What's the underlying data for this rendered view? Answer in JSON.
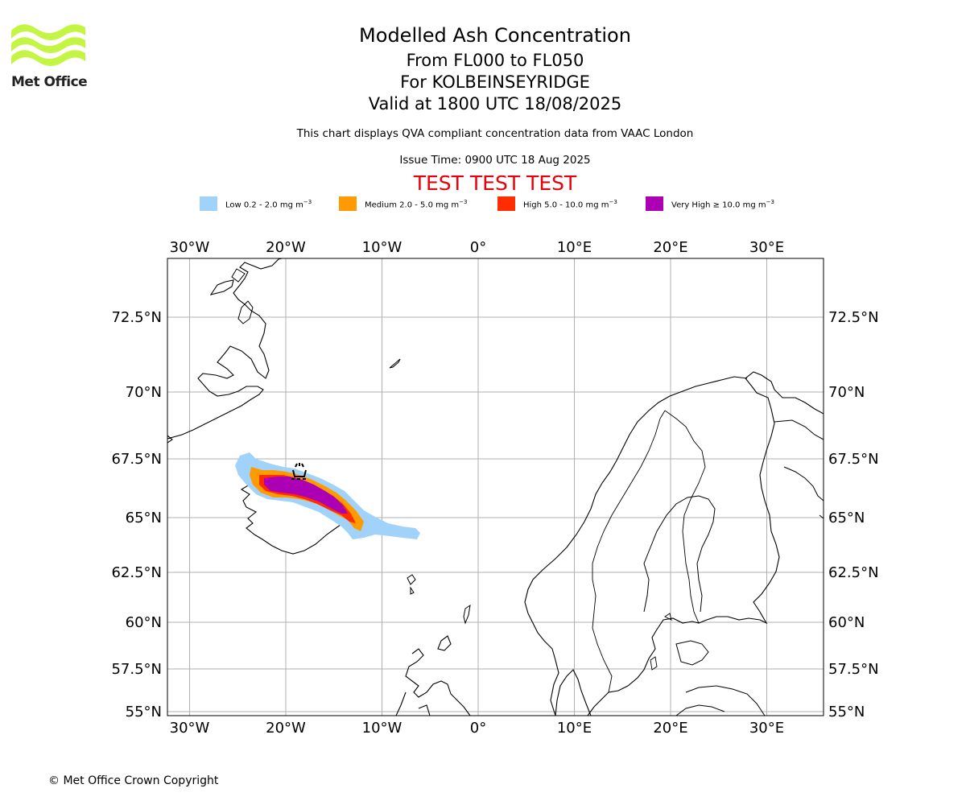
{
  "header": {
    "logo_text": "Met Office",
    "title": "Modelled Ash Concentration",
    "flight_levels": "From FL000 to FL050",
    "volcano": "For KOLBEINSEYRIDGE",
    "valid_time": "Valid at 1800 UTC 18/08/2025",
    "description": "This chart displays QVA compliant concentration data from VAAC London",
    "issue_time": "Issue Time: 0900 UTC 18 Aug 2025",
    "test_banner": "TEST TEST TEST"
  },
  "legend": [
    {
      "label": "Low 0.2 - 2.0 mg m",
      "color": "#a0d2fa"
    },
    {
      "label": "Medium 2.0 - 5.0 mg m",
      "color": "#ff9b00"
    },
    {
      "label": "High 5.0 - 10.0 mg m",
      "color": "#ff2d00"
    },
    {
      "label": "Very High  ≥  10.0 mg m",
      "color": "#ac00b4"
    }
  ],
  "legend_unit_exponent": "−3",
  "map": {
    "lon_ticks": [
      "30°W",
      "20°W",
      "10°W",
      "0°",
      "10°E",
      "20°E",
      "30°E"
    ],
    "lat_ticks": [
      "72.5°N",
      "70°N",
      "67.5°N",
      "65°N",
      "62.5°N",
      "60°N",
      "57.5°N",
      "55°N"
    ],
    "lon_values": [
      -30,
      -20,
      -10,
      0,
      10,
      20,
      30
    ],
    "lat_values": [
      72.5,
      70,
      67.5,
      65,
      62.5,
      60,
      57.5,
      55
    ],
    "grid": true,
    "volcano_marker": "volcano-icon",
    "colors": {
      "grid": "#b0b0b0",
      "coast": "#000000"
    }
  },
  "footer": {
    "copyright": "© Met Office Crown Copyright"
  }
}
